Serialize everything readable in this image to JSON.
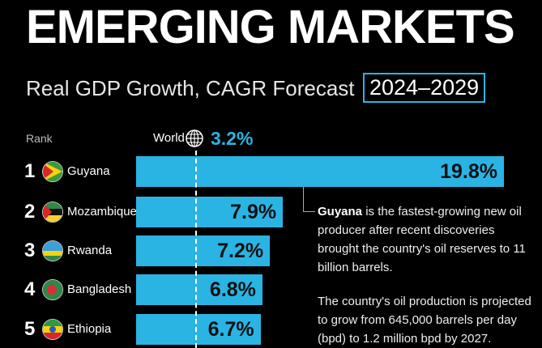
{
  "header": {
    "title": "EMERGING MARKETS",
    "subtitle": "Real GDP Growth, CAGR Forecast",
    "period": "2024–2029"
  },
  "chart_data": {
    "type": "bar",
    "title": "EMERGING MARKETS",
    "subtitle": "Real GDP Growth, CAGR Forecast 2024–2029",
    "rank_label": "Rank",
    "reference": {
      "label": "World",
      "value": 3.2,
      "display": "3.2%"
    },
    "categories": [
      "Guyana",
      "Mozambique",
      "Rwanda",
      "Bangladesh",
      "Ethiopia"
    ],
    "ranks": [
      "1",
      "2",
      "3",
      "4",
      "5"
    ],
    "values": [
      19.8,
      7.9,
      7.2,
      6.8,
      6.7
    ],
    "labels": [
      "19.8%",
      "7.9%",
      "7.2%",
      "6.8%",
      "6.7%"
    ],
    "unit": "%",
    "xlim": [
      0,
      20
    ],
    "bar_color": "#2ab4e4"
  },
  "annotation": {
    "bold": "Guyana",
    "p1": " is the fastest-growing new oil producer after recent discoveries brought the country's oil reserves to 11 billion barrels.",
    "p2": "The country's oil production is projected to grow from 645,000 barrels per day (bpd) to 1.2 million bpd by 2027."
  }
}
